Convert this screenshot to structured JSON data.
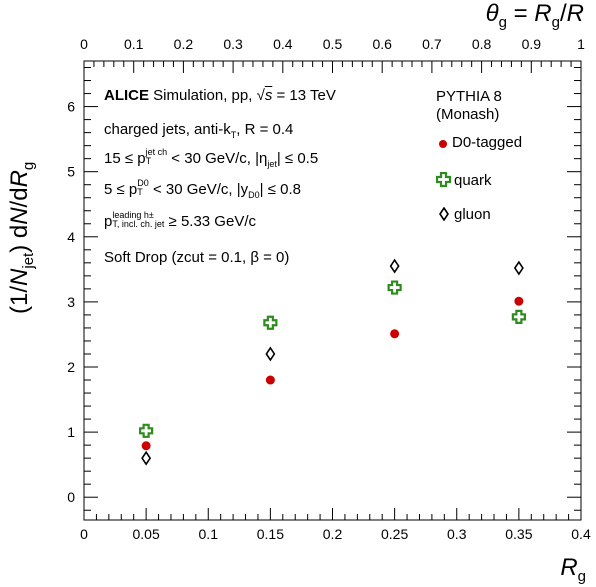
{
  "chart_data": {
    "type": "scatter",
    "bottom_axis": {
      "range": [
        0,
        0.4
      ],
      "ticks": [
        0,
        0.05,
        0.1,
        0.15,
        0.2,
        0.25,
        0.3,
        0.35,
        0.4
      ],
      "tick_labels": [
        "0",
        "0.05",
        "0.1",
        "0.15",
        "0.2",
        "0.25",
        "0.3",
        "0.35",
        "0.4"
      ],
      "label_main": "R",
      "label_sub": "g"
    },
    "top_axis": {
      "range": [
        0,
        1
      ],
      "ticks": [
        0,
        0.1,
        0.2,
        0.3,
        0.4,
        0.5,
        0.6,
        0.7,
        0.8,
        0.9,
        1
      ],
      "tick_labels": [
        "0",
        "0.1",
        "0.2",
        "0.3",
        "0.4",
        "0.5",
        "0.6",
        "0.7",
        "0.8",
        "0.9",
        "1"
      ],
      "label": "θg = Rg/R"
    },
    "y_axis": {
      "range": [
        -0.35,
        6.7
      ],
      "ticks": [
        0,
        1,
        2,
        3,
        4,
        5,
        6
      ],
      "tick_labels": [
        "0",
        "1",
        "2",
        "3",
        "4",
        "5",
        "6"
      ],
      "label": "(1/Njet) dN/dRg"
    },
    "series": [
      {
        "name": "D0-tagged",
        "color": "#cc0000",
        "marker": "circle",
        "x": [
          0.05,
          0.15,
          0.25,
          0.35
        ],
        "y": [
          0.79,
          1.8,
          2.51,
          3.01
        ]
      },
      {
        "name": "quark",
        "color": "#2e8b1e",
        "marker": "cross",
        "x": [
          0.05,
          0.15,
          0.25,
          0.35
        ],
        "y": [
          1.02,
          2.68,
          3.22,
          2.77
        ]
      },
      {
        "name": "gluon",
        "color": "#000000",
        "marker": "diamond",
        "x": [
          0.05,
          0.15,
          0.25,
          0.35
        ],
        "y": [
          0.6,
          2.2,
          3.55,
          3.52
        ]
      }
    ]
  },
  "annotations": {
    "line1_bold": "ALICE",
    "line1_rest": "Simulation, pp,",
    "line1_energy": "= 13 TeV",
    "line2": "charged jets, anti-k",
    "line2_sub": "T",
    "line2_r": ", R = 0.4",
    "line3_a": "15 ≤ p",
    "line3_sup": "jet ch",
    "line3_sub": "T",
    "line3_b": "< 30 GeV/c, |η",
    "line3_sub2": "jet",
    "line3_c": "| ≤ 0.5",
    "line4_a": "5 ≤ p",
    "line4_sup": "D0",
    "line4_sub": "T",
    "line4_b": "< 30 GeV/c, |y",
    "line4_sub2": "D0",
    "line4_c": "| ≤ 0.8",
    "line5_a": "p",
    "line5_sup": "leading h±",
    "line5_sub": "T, incl. ch. jet",
    "line5_b": "≥ 5.33 GeV/c",
    "line6": "Soft Drop (zcut = 0.1, β = 0)"
  },
  "legend": {
    "header1": "PYTHIA 8",
    "header2": "(Monash)",
    "items": [
      "D0-tagged",
      "quark",
      "gluon"
    ]
  }
}
